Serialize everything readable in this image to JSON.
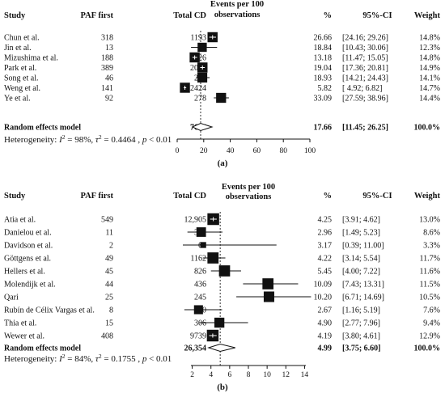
{
  "chart_data": [
    {
      "type": "forest",
      "panel_label": "(a)",
      "headers": {
        "study": "Study",
        "paf_first": "PAF first",
        "total_cd": "Total CD",
        "events_line1": "Events per 100",
        "events_line2": "observations",
        "percent": "%",
        "ci": "95%-CI",
        "weight": "Weight"
      },
      "xlim": [
        0,
        100
      ],
      "xticks": [
        "0",
        "20",
        "40",
        "60",
        "80",
        "100"
      ],
      "xtick_values": [
        0,
        20,
        40,
        60,
        80,
        100
      ],
      "pooled_line": 17.66,
      "studies": [
        {
          "name": "Chun et al.",
          "paf": "318",
          "cd": "1193",
          "est": 26.66,
          "lo": 24.16,
          "hi": 29.26,
          "est_text": "26.66",
          "ci_text": "[24.16; 29.26]",
          "weight": "14.8%",
          "w": 14.8
        },
        {
          "name": "Jin et al.",
          "paf": "13",
          "cd": "69",
          "est": 18.84,
          "lo": 10.43,
          "hi": 30.06,
          "est_text": "18.84",
          "ci_text": "[10.43; 30.06]",
          "weight": "12.3%",
          "w": 12.3
        },
        {
          "name": "Mizushima et al.",
          "paf": "188",
          "cd": "1426",
          "est": 13.18,
          "lo": 11.47,
          "hi": 15.05,
          "est_text": "13.18",
          "ci_text": "[11.47; 15.05]",
          "weight": "14.8%",
          "w": 14.8
        },
        {
          "name": "Park et al.",
          "paf": "389",
          "cd": "2043",
          "est": 19.04,
          "lo": 17.36,
          "hi": 20.81,
          "est_text": "19.04",
          "ci_text": "[17.36; 20.81]",
          "weight": "14.9%",
          "w": 14.9
        },
        {
          "name": "Song et al.",
          "paf": "46",
          "cd": "243",
          "est": 18.93,
          "lo": 14.21,
          "hi": 24.43,
          "est_text": "18.93",
          "ci_text": "[14.21; 24.43]",
          "weight": "14.1%",
          "w": 14.1
        },
        {
          "name": "Weng et al.",
          "paf": "141",
          "cd": "2424",
          "est": 5.82,
          "lo": 4.92,
          "hi": 6.82,
          "est_text": "5.82",
          "ci_text": "[ 4.92; 6.82]",
          "weight": "14.7%",
          "w": 14.7
        },
        {
          "name": "Ye et al.",
          "paf": "92",
          "cd": "278",
          "est": 33.09,
          "lo": 27.59,
          "hi": 38.96,
          "est_text": "33.09",
          "ci_text": "[27.59; 38.96]",
          "weight": "14.4%",
          "w": 14.4
        }
      ],
      "random_effects": {
        "label": "Random effects model",
        "cd": "7676",
        "est": 17.66,
        "lo": 11.45,
        "hi": 26.25,
        "est_text": "17.66",
        "ci_text": "[11.45; 26.25]",
        "weight": "100.0%"
      },
      "heterogeneity": {
        "label": "Heterogeneity:",
        "i2": "98%",
        "tau2": "0.4464",
        "p": "< 0.01"
      }
    },
    {
      "type": "forest",
      "panel_label": "(b)",
      "headers": {
        "study": "Study",
        "paf_first": "PAF first",
        "total_cd": "Total CD",
        "events_line1": "Events per 100",
        "events_line2": "observations",
        "percent": "%",
        "ci": "95%-CI",
        "weight": "Weight"
      },
      "xlim": [
        1,
        15
      ],
      "xticks": [
        "2",
        "4",
        "6",
        "8",
        "10",
        "12",
        "14"
      ],
      "xtick_values": [
        2,
        4,
        6,
        8,
        10,
        12,
        14
      ],
      "pooled_line": 4.99,
      "studies": [
        {
          "name": "Atia et al.",
          "paf": "549",
          "cd": "12,905",
          "est": 4.25,
          "lo": 3.91,
          "hi": 4.62,
          "est_text": "4.25",
          "ci_text": "[3.91; 4.62]",
          "weight": "13.0%",
          "w": 13.0
        },
        {
          "name": "Danielou et al.",
          "paf": "11",
          "cd": "372",
          "est": 2.96,
          "lo": 1.49,
          "hi": 5.23,
          "est_text": "2.96",
          "ci_text": "[1.49; 5.23]",
          "weight": "8.6%",
          "w": 8.6
        },
        {
          "name": "Davidson et al.",
          "paf": "2",
          "cd": "63",
          "est": 3.17,
          "lo": 0.39,
          "hi": 11.0,
          "est_text": "3.17",
          "ci_text": "[0.39; 11.00]",
          "weight": "3.3%",
          "w": 3.3
        },
        {
          "name": "Göttgens et al.",
          "paf": "49",
          "cd": "1162",
          "est": 4.22,
          "lo": 3.14,
          "hi": 5.54,
          "est_text": "4.22",
          "ci_text": "[3.14; 5.54]",
          "weight": "11.7%",
          "w": 11.7
        },
        {
          "name": "Hellers et al.",
          "paf": "45",
          "cd": "826",
          "est": 5.45,
          "lo": 4.0,
          "hi": 7.22,
          "est_text": "5.45",
          "ci_text": "[4.00; 7.22]",
          "weight": "11.6%",
          "w": 11.6
        },
        {
          "name": "Molendijk et al.",
          "paf": "44",
          "cd": "436",
          "est": 10.09,
          "lo": 7.43,
          "hi": 13.31,
          "est_text": "10.09",
          "ci_text": "[7.43; 13.31]",
          "weight": "11.5%",
          "w": 11.5
        },
        {
          "name": "Qari",
          "paf": "25",
          "cd": "245",
          "est": 10.2,
          "lo": 6.71,
          "hi": 14.69,
          "est_text": "10.20",
          "ci_text": "[6.71; 14.69]",
          "weight": "10.5%",
          "w": 10.5
        },
        {
          "name": "Rubín de Célix Vargas et al.",
          "paf": "8",
          "cd": "300",
          "est": 2.67,
          "lo": 1.16,
          "hi": 5.19,
          "est_text": "2.67",
          "ci_text": "[1.16; 5.19]",
          "weight": "7.6%",
          "w": 7.6
        },
        {
          "name": "Thia et al.",
          "paf": "15",
          "cd": "306",
          "est": 4.9,
          "lo": 2.77,
          "hi": 7.96,
          "est_text": "4.90",
          "ci_text": "[2.77; 7.96]",
          "weight": "9.4%",
          "w": 9.4
        },
        {
          "name": "Wewer et al.",
          "paf": "408",
          "cd": "9739",
          "est": 4.19,
          "lo": 3.8,
          "hi": 4.61,
          "est_text": "4.19",
          "ci_text": "[3.80; 4.61]",
          "weight": "12.9%",
          "w": 12.9
        }
      ],
      "random_effects": {
        "label": "Random effects model",
        "cd": "26,354",
        "est": 4.99,
        "lo": 3.75,
        "hi": 6.6,
        "est_text": "4.99",
        "ci_text": "[3.75; 6.60]",
        "weight": "100.0%"
      },
      "heterogeneity": {
        "label": "Heterogeneity:",
        "i2": "84%",
        "tau2": "0.1755",
        "p": "< 0.01"
      }
    }
  ]
}
